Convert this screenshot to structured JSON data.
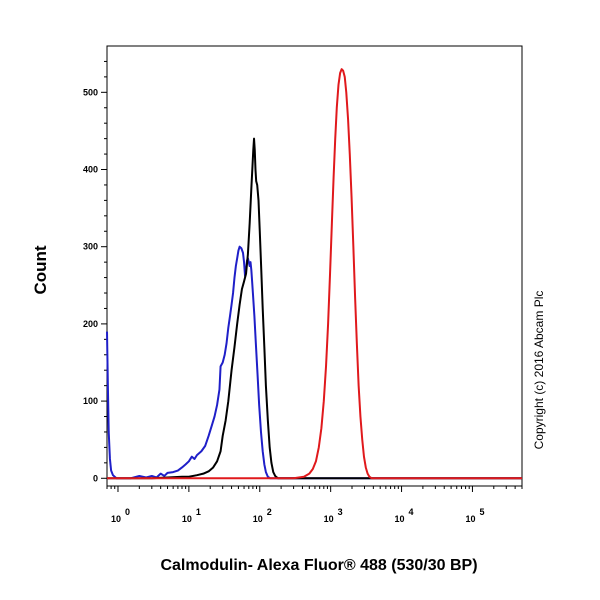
{
  "chart_data": {
    "type": "line",
    "title": "",
    "xlabel": "Calmodulin- Alexa Fluor® 488 (530/30 BP)",
    "ylabel": "Count",
    "x_scale": "log",
    "xlim": [
      0.7,
      500000
    ],
    "ylim": [
      -10,
      560
    ],
    "y_ticks": [
      0,
      100,
      200,
      300,
      400,
      500
    ],
    "y_tick_labels": [
      "0",
      "100",
      "200",
      "300",
      "400",
      "500"
    ],
    "x_ticks": [
      1,
      10,
      100,
      1000,
      10000,
      100000
    ],
    "x_tick_labels": [
      {
        "base": "10",
        "exp": "0"
      },
      {
        "base": "10",
        "exp": "1"
      },
      {
        "base": "10",
        "exp": "2"
      },
      {
        "base": "10",
        "exp": "3"
      },
      {
        "base": "10",
        "exp": "4"
      },
      {
        "base": "10",
        "exp": "5"
      }
    ],
    "grid": false,
    "legend": "none",
    "copyright": "Copyright (c) 2016 Abcam Plc",
    "series": [
      {
        "color": "#1f1fc8",
        "points": [
          [
            0.7,
            190
          ],
          [
            0.72,
            120
          ],
          [
            0.74,
            60
          ],
          [
            0.77,
            25
          ],
          [
            0.8,
            10
          ],
          [
            0.85,
            4
          ],
          [
            0.95,
            0
          ],
          [
            1.5,
            0
          ],
          [
            2.0,
            3
          ],
          [
            2.5,
            1
          ],
          [
            3.0,
            3
          ],
          [
            3.5,
            1
          ],
          [
            4.0,
            6
          ],
          [
            4.5,
            3
          ],
          [
            5.0,
            7
          ],
          [
            6.0,
            8
          ],
          [
            7.0,
            10
          ],
          [
            8.0,
            14
          ],
          [
            9.0,
            18
          ],
          [
            10,
            22
          ],
          [
            11,
            28
          ],
          [
            12,
            25
          ],
          [
            13,
            30
          ],
          [
            15,
            35
          ],
          [
            17,
            42
          ],
          [
            19,
            55
          ],
          [
            21,
            68
          ],
          [
            23,
            80
          ],
          [
            25,
            95
          ],
          [
            27,
            115
          ],
          [
            28,
            145
          ],
          [
            30,
            150
          ],
          [
            32,
            160
          ],
          [
            34,
            175
          ],
          [
            36,
            195
          ],
          [
            38,
            210
          ],
          [
            40,
            225
          ],
          [
            42,
            240
          ],
          [
            44,
            260
          ],
          [
            46,
            275
          ],
          [
            48,
            285
          ],
          [
            50,
            295
          ],
          [
            52,
            300
          ],
          [
            55,
            298
          ],
          [
            58,
            292
          ],
          [
            60,
            280
          ],
          [
            62,
            262
          ],
          [
            64,
            270
          ],
          [
            66,
            282
          ],
          [
            68,
            285
          ],
          [
            70,
            280
          ],
          [
            72,
            275
          ],
          [
            74,
            280
          ],
          [
            76,
            270
          ],
          [
            78,
            255
          ],
          [
            80,
            240
          ],
          [
            84,
            210
          ],
          [
            88,
            175
          ],
          [
            93,
            135
          ],
          [
            98,
            95
          ],
          [
            104,
            60
          ],
          [
            110,
            35
          ],
          [
            116,
            18
          ],
          [
            122,
            8
          ],
          [
            130,
            2
          ],
          [
            140,
            0
          ],
          [
            200,
            0
          ],
          [
            300,
            0
          ],
          [
            500000,
            0
          ]
        ]
      },
      {
        "color": "#000000",
        "points": [
          [
            0.7,
            0
          ],
          [
            2.0,
            0
          ],
          [
            3.0,
            0
          ],
          [
            5.0,
            1
          ],
          [
            8.0,
            2
          ],
          [
            10,
            2
          ],
          [
            13,
            4
          ],
          [
            16,
            6
          ],
          [
            19,
            9
          ],
          [
            22,
            14
          ],
          [
            25,
            22
          ],
          [
            28,
            35
          ],
          [
            30,
            55
          ],
          [
            33,
            75
          ],
          [
            36,
            100
          ],
          [
            40,
            140
          ],
          [
            44,
            170
          ],
          [
            48,
            200
          ],
          [
            52,
            225
          ],
          [
            56,
            245
          ],
          [
            60,
            255
          ],
          [
            64,
            265
          ],
          [
            68,
            290
          ],
          [
            72,
            330
          ],
          [
            76,
            375
          ],
          [
            79,
            405
          ],
          [
            81,
            425
          ],
          [
            83,
            440
          ],
          [
            85,
            425
          ],
          [
            87,
            400
          ],
          [
            89,
            385
          ],
          [
            92,
            380
          ],
          [
            96,
            360
          ],
          [
            100,
            320
          ],
          [
            105,
            270
          ],
          [
            110,
            220
          ],
          [
            116,
            170
          ],
          [
            122,
            120
          ],
          [
            130,
            75
          ],
          [
            138,
            40
          ],
          [
            146,
            20
          ],
          [
            155,
            8
          ],
          [
            165,
            3
          ],
          [
            180,
            0
          ],
          [
            300,
            0
          ],
          [
            500000,
            0
          ]
        ]
      },
      {
        "color": "#e0191c",
        "points": [
          [
            0.7,
            0
          ],
          [
            100,
            0
          ],
          [
            300,
            0
          ],
          [
            420,
            2
          ],
          [
            500,
            6
          ],
          [
            560,
            12
          ],
          [
            620,
            22
          ],
          [
            680,
            40
          ],
          [
            740,
            65
          ],
          [
            800,
            100
          ],
          [
            860,
            145
          ],
          [
            920,
            200
          ],
          [
            980,
            265
          ],
          [
            1040,
            330
          ],
          [
            1100,
            390
          ],
          [
            1160,
            440
          ],
          [
            1220,
            480
          ],
          [
            1290,
            510
          ],
          [
            1360,
            525
          ],
          [
            1430,
            530
          ],
          [
            1500,
            528
          ],
          [
            1580,
            520
          ],
          [
            1660,
            500
          ],
          [
            1760,
            465
          ],
          [
            1860,
            420
          ],
          [
            1970,
            365
          ],
          [
            2090,
            300
          ],
          [
            2210,
            235
          ],
          [
            2340,
            175
          ],
          [
            2480,
            120
          ],
          [
            2630,
            80
          ],
          [
            2790,
            50
          ],
          [
            2950,
            28
          ],
          [
            3130,
            14
          ],
          [
            3320,
            6
          ],
          [
            3520,
            2
          ],
          [
            3800,
            0
          ],
          [
            10000,
            0
          ],
          [
            500000,
            0
          ]
        ]
      }
    ]
  }
}
